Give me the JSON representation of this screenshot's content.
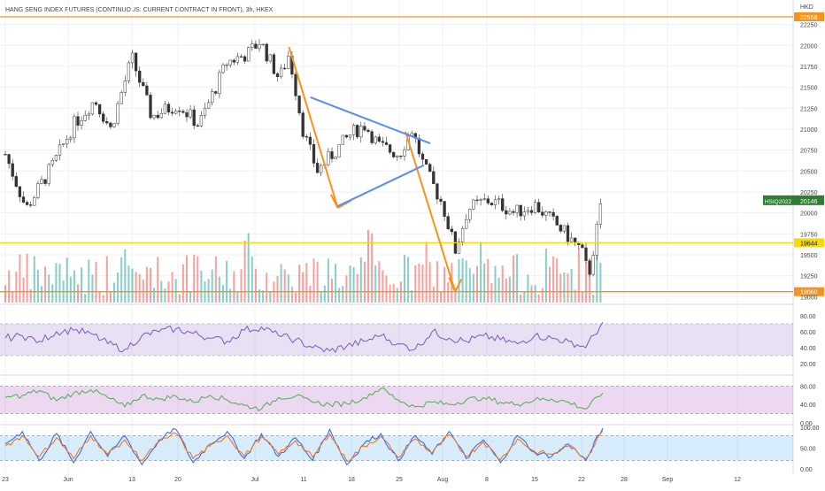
{
  "header": {
    "title": "HANG SENG INDEX FUTURES (CONTINUOUS: CURRENT CONTRACT IN FRONT), 3h, HKEX",
    "currency": "HKD"
  },
  "colors": {
    "up": "#26a69a",
    "down": "#ef5350",
    "orange": "#f7931a",
    "yellow": "#f5d90a",
    "blue": "#5b8def",
    "rsi": "#7e57c2",
    "rsi_ma": "#f5d90a",
    "mfi": "#4caf50",
    "stoch_k": "#2962ff",
    "stoch_d": "#ff6d00",
    "price_tag": "#2e7d32"
  },
  "chart_data": [
    {
      "type": "candlestick",
      "name": "price",
      "title": "HANG SENG INDEX FUTURES (CONTINUOUS: CURRENT CONTRACT IN FRONT), 3h, HKEX",
      "y_ticks": [
        "22250",
        "22000",
        "21750",
        "21500",
        "21250",
        "21000",
        "20750",
        "20500",
        "20250",
        "20000",
        "19750",
        "19500",
        "19250",
        "19000"
      ],
      "ylim": [
        18930,
        22330
      ],
      "x_ticks": [
        "23",
        "Jun",
        "13",
        "20",
        "Jul",
        "11",
        "18",
        "25",
        "Aug",
        "8",
        "15",
        "22",
        "28",
        "Sep",
        "12"
      ],
      "horizontal_levels": [
        {
          "value": 22558,
          "label": "22558",
          "color": "orange"
        },
        {
          "value": 19644,
          "label": "19644",
          "color": "yellow"
        },
        {
          "value": 19060,
          "label": "19060",
          "color": "orange"
        }
      ],
      "last_price": {
        "symbol": "HSIQ2022",
        "value": 20146,
        "label": "20146"
      },
      "path_points": [
        [
          "2022-05-23",
          20700
        ],
        [
          "2022-05-26",
          20050
        ],
        [
          "2022-05-30",
          20600
        ],
        [
          "2022-06-02",
          21050
        ],
        [
          "2022-06-06",
          21350
        ],
        [
          "2022-06-09",
          21000
        ],
        [
          "2022-06-13",
          21850
        ],
        [
          "2022-06-16",
          21150
        ],
        [
          "2022-06-20",
          21300
        ],
        [
          "2022-06-23",
          21050
        ],
        [
          "2022-06-27",
          21800
        ],
        [
          "2022-06-30",
          21900
        ],
        [
          "2022-07-02",
          22050
        ],
        [
          "2022-07-06",
          21600
        ],
        [
          "2022-07-08",
          21900
        ],
        [
          "2022-07-11",
          20950
        ],
        [
          "2022-07-13",
          20500
        ],
        [
          "2022-07-18",
          20950
        ],
        [
          "2022-07-20",
          21050
        ],
        [
          "2022-07-22",
          20800
        ],
        [
          "2022-07-25",
          20700
        ],
        [
          "2022-07-27",
          21000
        ],
        [
          "2022-07-29",
          20550
        ],
        [
          "2022-08-01",
          20100
        ],
        [
          "2022-08-03",
          19550
        ],
        [
          "2022-08-05",
          20050
        ],
        [
          "2022-08-08",
          20150
        ],
        [
          "2022-08-10",
          20100
        ],
        [
          "2022-08-12",
          20000
        ],
        [
          "2022-08-15",
          20100
        ],
        [
          "2022-08-17",
          19950
        ],
        [
          "2022-08-19",
          19800
        ],
        [
          "2022-08-22",
          19550
        ],
        [
          "2022-08-23",
          19250
        ],
        [
          "2022-08-25",
          20200
        ]
      ],
      "volume_note": "volume bars at bottom of pane"
    },
    {
      "type": "line",
      "name": "rsi",
      "y_ticks": [
        "80.00",
        "60.00",
        "40.00",
        "20.00"
      ],
      "ylim": [
        10,
        90
      ],
      "band": [
        30,
        70
      ],
      "series": [
        {
          "values": [
            52,
            55,
            48,
            60,
            62,
            58,
            45,
            38,
            55,
            60,
            64,
            58,
            52,
            48,
            62,
            66,
            55,
            50,
            40,
            36,
            42,
            48,
            55,
            45,
            38,
            60,
            52,
            48,
            55,
            50,
            45,
            55,
            52,
            48,
            40,
            72
          ]
        }
      ]
    },
    {
      "type": "line",
      "name": "mfi",
      "y_ticks": [
        "80.00",
        "40.00",
        "0.00"
      ],
      "ylim": [
        0,
        100
      ],
      "band": [
        20,
        80
      ],
      "series": [
        {
          "values": [
            55,
            60,
            70,
            48,
            65,
            72,
            55,
            35,
            60,
            52,
            58,
            45,
            60,
            50,
            38,
            30,
            55,
            58,
            45,
            40,
            42,
            55,
            75,
            50,
            35,
            45,
            40,
            50,
            55,
            45,
            40,
            50,
            52,
            45,
            30,
            65
          ]
        }
      ]
    },
    {
      "type": "line",
      "name": "stochastic",
      "y_ticks": [
        "100.00",
        "50.00",
        "0.00"
      ],
      "ylim": [
        0,
        100
      ],
      "band": [
        20,
        80
      ],
      "series": [
        {
          "values": [
            60,
            90,
            20,
            85,
            15,
            90,
            30,
            80,
            10,
            70,
            95,
            15,
            60,
            90,
            25,
            85,
            30,
            75,
            20,
            95,
            10,
            60,
            85,
            20,
            80,
            35,
            90,
            25,
            70,
            15,
            80,
            40,
            30,
            60,
            20,
            100
          ]
        },
        {
          "values": [
            55,
            80,
            30,
            75,
            25,
            80,
            35,
            70,
            20,
            65,
            85,
            25,
            55,
            80,
            30,
            78,
            35,
            68,
            28,
            85,
            18,
            55,
            78,
            28,
            72,
            38,
            82,
            30,
            65,
            22,
            72,
            42,
            35,
            55,
            25,
            92
          ]
        }
      ]
    }
  ]
}
